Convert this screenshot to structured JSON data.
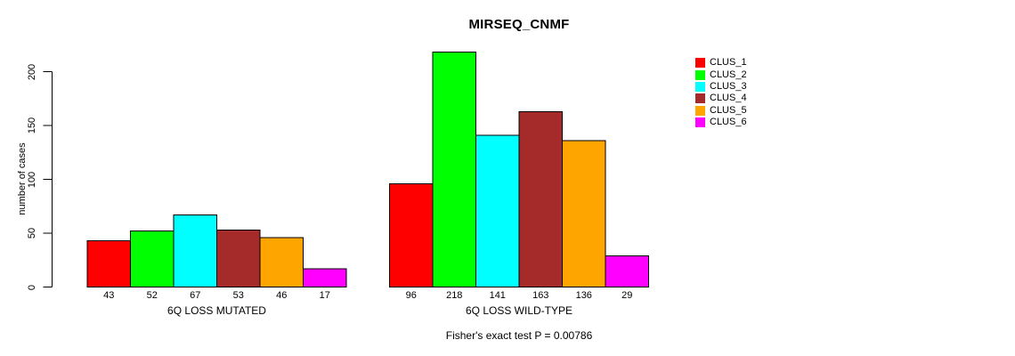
{
  "chart_data": {
    "type": "bar",
    "title": "MIRSEQ_CNMF",
    "ylabel": "number of cases",
    "xlabel": "",
    "yticks": [
      0,
      50,
      100,
      150,
      200
    ],
    "ylim": [
      0,
      225
    ],
    "grid": false,
    "legend_position": "right-outside",
    "categories": [
      "6Q LOSS MUTATED",
      "6Q LOSS WILD-TYPE"
    ],
    "series": [
      {
        "name": "CLUS_1",
        "color": "#FF0000",
        "values": [
          43,
          96
        ]
      },
      {
        "name": "CLUS_2",
        "color": "#00FF00",
        "values": [
          52,
          218
        ]
      },
      {
        "name": "CLUS_3",
        "color": "#00FFFF",
        "values": [
          67,
          141
        ]
      },
      {
        "name": "CLUS_4",
        "color": "#A52A2A",
        "values": [
          53,
          163
        ]
      },
      {
        "name": "CLUS_5",
        "color": "#FFA500",
        "values": [
          46,
          136
        ]
      },
      {
        "name": "CLUS_6",
        "color": "#FF00FF",
        "values": [
          17,
          29
        ]
      }
    ],
    "bar_outline_color": "#000000",
    "bar_value_labels_shown": true,
    "footnote": "Fisher's exact test P = 0.00786"
  }
}
